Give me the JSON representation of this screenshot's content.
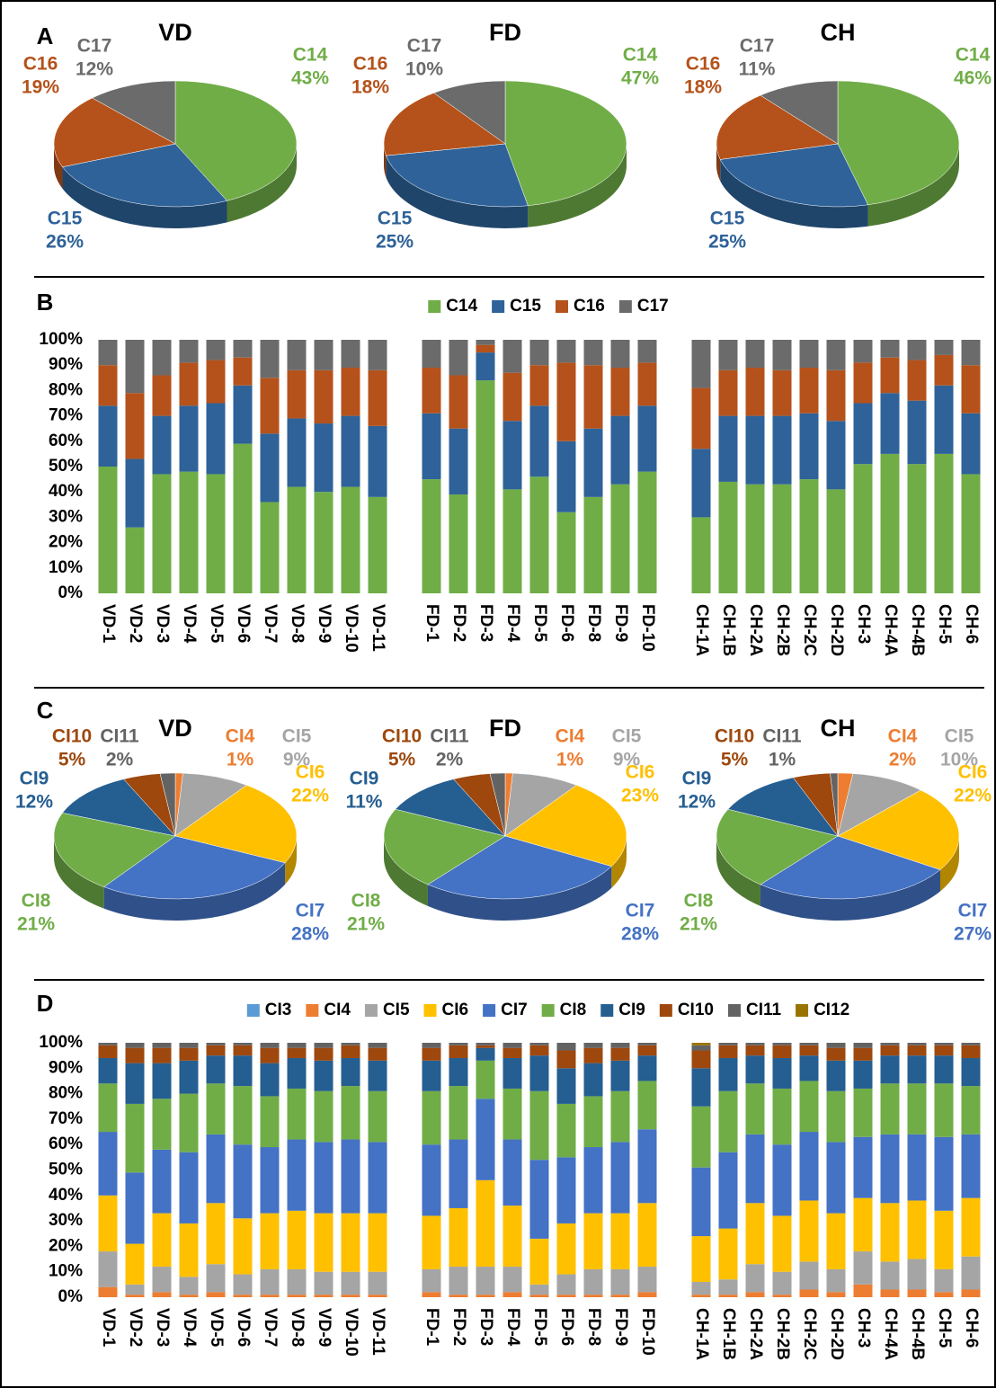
{
  "chart_data": [
    {
      "type": "pie",
      "panel": "A",
      "title": "VD",
      "categories": [
        "C14",
        "C15",
        "C16",
        "C17"
      ],
      "values": [
        43,
        26,
        19,
        12
      ],
      "value_labels": [
        "43%",
        "26%",
        "19%",
        "12%"
      ],
      "colors": [
        "#70ad47",
        "#2e6299",
        "#b5521b",
        "#6b6b6b"
      ]
    },
    {
      "type": "pie",
      "title": "FD",
      "categories": [
        "C14",
        "C15",
        "C16",
        "C17"
      ],
      "values": [
        47,
        25,
        18,
        10
      ],
      "value_labels": [
        "47%",
        "25%",
        "18%",
        "10%"
      ],
      "colors": [
        "#70ad47",
        "#2e6299",
        "#b5521b",
        "#6b6b6b"
      ]
    },
    {
      "type": "pie",
      "title": "CH",
      "categories": [
        "C14",
        "C15",
        "C16",
        "C17"
      ],
      "values": [
        46,
        25,
        18,
        11
      ],
      "value_labels": [
        "46%",
        "25%",
        "18%",
        "11%"
      ],
      "colors": [
        "#70ad47",
        "#2e6299",
        "#b5521b",
        "#6b6b6b"
      ]
    },
    {
      "type": "bar",
      "stacked": true,
      "panel": "B",
      "categories": [
        "VD-1",
        "VD-2",
        "VD-3",
        "VD-4",
        "VD-5",
        "VD-6",
        "VD-7",
        "VD-8",
        "VD-9",
        "VD-10",
        "VD-11",
        null,
        "FD-1",
        "FD-2",
        "FD-3",
        "FD-4",
        "FD-5",
        "FD-6",
        "FD-8",
        "FD-9",
        "FD-10",
        null,
        "CH-1A",
        "CH-1B",
        "CH-2A",
        "CH-2B",
        "CH-2C",
        "CH-2D",
        "CH-3",
        "CH-4A",
        "CH-4B",
        "CH-5",
        "CH-6"
      ],
      "series": [
        {
          "name": "C14",
          "color": "#70ad47",
          "values": [
            50,
            26,
            47,
            48,
            47,
            59,
            36,
            42,
            40,
            42,
            38,
            null,
            45,
            39,
            84,
            41,
            46,
            32,
            38,
            43,
            48,
            null,
            30,
            44,
            43,
            43,
            45,
            41,
            51,
            55,
            51,
            55,
            47
          ]
        },
        {
          "name": "C15",
          "color": "#2e6299",
          "values": [
            24,
            27,
            23,
            26,
            28,
            23,
            27,
            27,
            27,
            28,
            28,
            null,
            26,
            26,
            11,
            27,
            28,
            28,
            27,
            27,
            26,
            null,
            27,
            26,
            27,
            27,
            26,
            27,
            24,
            24,
            25,
            27,
            24
          ]
        },
        {
          "name": "C16",
          "color": "#b5521b",
          "values": [
            16,
            26,
            16,
            17,
            17,
            11,
            22,
            19,
            21,
            19,
            22,
            null,
            18,
            21,
            3,
            19,
            16,
            31,
            25,
            19,
            17,
            null,
            24,
            18,
            19,
            18,
            18,
            20,
            16,
            14,
            16,
            12,
            19
          ]
        },
        {
          "name": "C17",
          "color": "#6b6b6b",
          "values": [
            10,
            21,
            14,
            9,
            8,
            7,
            15,
            12,
            12,
            11,
            12,
            null,
            11,
            14,
            2,
            13,
            10,
            9,
            10,
            11,
            9,
            null,
            19,
            12,
            11,
            12,
            11,
            12,
            9,
            7,
            8,
            6,
            10
          ]
        }
      ],
      "ylim": [
        0,
        100
      ],
      "yticks": [
        {
          "value": 0,
          "label": "0%"
        },
        {
          "value": 10,
          "label": "10%"
        },
        {
          "value": 20,
          "label": "20%"
        },
        {
          "value": 30,
          "label": "30%"
        },
        {
          "value": 40,
          "label": "40%"
        },
        {
          "value": 50,
          "label": "50%"
        },
        {
          "value": 60,
          "label": "60%"
        },
        {
          "value": 70,
          "label": "70%"
        },
        {
          "value": 80,
          "label": "80%"
        },
        {
          "value": 90,
          "label": "90%"
        },
        {
          "value": 100,
          "label": "100%"
        }
      ],
      "legend": "top"
    },
    {
      "type": "pie",
      "panel": "C",
      "title": "VD",
      "categories": [
        "CI4",
        "CI5",
        "CI6",
        "CI7",
        "CI8",
        "CI9",
        "CI10",
        "CI11"
      ],
      "values": [
        1,
        9,
        22,
        28,
        21,
        12,
        5,
        2
      ],
      "value_labels": [
        "1%",
        "9%",
        "22%",
        "28%",
        "21%",
        "12%",
        "5%",
        "2%"
      ],
      "colors": [
        "#ed7d31",
        "#a5a5a5",
        "#ffc000",
        "#4472c4",
        "#70ad47",
        "#255e91",
        "#9e480e",
        "#636363"
      ]
    },
    {
      "type": "pie",
      "title": "FD",
      "categories": [
        "CI4",
        "CI5",
        "CI6",
        "CI7",
        "CI8",
        "CI9",
        "CI10",
        "CI11"
      ],
      "values": [
        1,
        9,
        23,
        28,
        21,
        11,
        5,
        2
      ],
      "value_labels": [
        "1%",
        "9%",
        "23%",
        "28%",
        "21%",
        "11%",
        "5%",
        "2%"
      ],
      "colors": [
        "#ed7d31",
        "#a5a5a5",
        "#ffc000",
        "#4472c4",
        "#70ad47",
        "#255e91",
        "#9e480e",
        "#636363"
      ]
    },
    {
      "type": "pie",
      "title": "CH",
      "categories": [
        "CI4",
        "CI5",
        "CI6",
        "CI7",
        "CI8",
        "CI9",
        "CI10",
        "CI11"
      ],
      "values": [
        2,
        10,
        22,
        27,
        21,
        12,
        5,
        1
      ],
      "value_labels": [
        "2%",
        "10%",
        "22%",
        "27%",
        "21%",
        "12%",
        "5%",
        "1%"
      ],
      "colors": [
        "#ed7d31",
        "#a5a5a5",
        "#ffc000",
        "#4472c4",
        "#70ad47",
        "#255e91",
        "#9e480e",
        "#636363"
      ]
    },
    {
      "type": "bar",
      "stacked": true,
      "panel": "D",
      "categories": [
        "VD-1",
        "VD-2",
        "VD-3",
        "VD-4",
        "VD-5",
        "VD-6",
        "VD-7",
        "VD-8",
        "VD-9",
        "VD-10",
        "VD-11",
        null,
        "FD-1",
        "FD-2",
        "FD-3",
        "FD-4",
        "FD-5",
        "FD-6",
        "FD-8",
        "FD-9",
        "FD-10",
        null,
        "CH-1A",
        "CH-1B",
        "CH-2A",
        "CH-2B",
        "CH-2C",
        "CH-2D",
        "CH-3",
        "CH-4A",
        "CH-4B",
        "CH-5",
        "CH-6"
      ],
      "series": [
        {
          "name": "CI3",
          "color": "#5b9bd5",
          "values": [
            0,
            0,
            0,
            0,
            0,
            0,
            0,
            0,
            0,
            0,
            0,
            null,
            0,
            0,
            0,
            0,
            0,
            0,
            0,
            0,
            0,
            null,
            0,
            0,
            0,
            0,
            0,
            0,
            0,
            0,
            0,
            0,
            0
          ]
        },
        {
          "name": "CI4",
          "color": "#ed7d31",
          "values": [
            4,
            1,
            2,
            1,
            2,
            1,
            1,
            1,
            1,
            1,
            1,
            null,
            2,
            1,
            1,
            2,
            1,
            1,
            1,
            1,
            2,
            null,
            1,
            1,
            2,
            1,
            3,
            2,
            5,
            3,
            3,
            2,
            3
          ]
        },
        {
          "name": "CI5",
          "color": "#a5a5a5",
          "values": [
            14,
            4,
            10,
            7,
            11,
            8,
            10,
            10,
            9,
            9,
            9,
            null,
            9,
            11,
            11,
            10,
            4,
            8,
            10,
            10,
            10,
            null,
            5,
            6,
            11,
            9,
            11,
            9,
            13,
            11,
            12,
            9,
            13
          ]
        },
        {
          "name": "CI6",
          "color": "#ffc000",
          "values": [
            22,
            16,
            21,
            21,
            24,
            22,
            22,
            23,
            23,
            23,
            23,
            null,
            21,
            23,
            34,
            24,
            18,
            20,
            22,
            22,
            25,
            null,
            18,
            20,
            24,
            22,
            24,
            22,
            21,
            23,
            23,
            23,
            23
          ]
        },
        {
          "name": "CI7",
          "color": "#4472c4",
          "values": [
            25,
            28,
            25,
            28,
            27,
            29,
            26,
            28,
            28,
            29,
            28,
            null,
            28,
            27,
            32,
            26,
            31,
            26,
            26,
            28,
            29,
            null,
            27,
            30,
            27,
            28,
            27,
            28,
            24,
            27,
            26,
            29,
            25
          ]
        },
        {
          "name": "CI8",
          "color": "#70ad47",
          "values": [
            19,
            27,
            20,
            23,
            20,
            23,
            20,
            20,
            20,
            21,
            20,
            null,
            21,
            21,
            15,
            20,
            27,
            21,
            20,
            20,
            19,
            null,
            24,
            24,
            20,
            22,
            20,
            20,
            19,
            20,
            20,
            21,
            19
          ]
        },
        {
          "name": "CI9",
          "color": "#255e91",
          "values": [
            10,
            16,
            14,
            13,
            11,
            12,
            13,
            12,
            12,
            11,
            12,
            null,
            12,
            11,
            5,
            12,
            14,
            14,
            13,
            12,
            10,
            null,
            15,
            13,
            11,
            12,
            10,
            12,
            11,
            11,
            11,
            11,
            11
          ]
        },
        {
          "name": "CI10",
          "color": "#9e480e",
          "values": [
            5,
            6,
            6,
            5,
            4,
            4,
            6,
            4,
            5,
            5,
            5,
            null,
            5,
            5,
            1,
            4,
            4,
            7,
            6,
            5,
            4,
            null,
            7,
            5,
            4,
            5,
            4,
            5,
            5,
            4,
            4,
            4,
            5
          ]
        },
        {
          "name": "CI11",
          "color": "#636363",
          "values": [
            1,
            2,
            2,
            2,
            1,
            1,
            2,
            2,
            2,
            1,
            2,
            null,
            2,
            1,
            1,
            2,
            1,
            3,
            2,
            2,
            1,
            null,
            2,
            1,
            1,
            1,
            1,
            2,
            2,
            1,
            1,
            1,
            1
          ]
        },
        {
          "name": "CI12",
          "color": "#997300",
          "values": [
            0,
            0,
            0,
            0,
            0,
            0,
            0,
            0,
            0,
            0,
            0,
            null,
            0,
            0,
            0,
            0,
            0,
            0,
            0,
            0,
            0,
            null,
            1,
            0,
            0,
            0,
            0,
            0,
            0,
            0,
            0,
            0,
            0
          ]
        }
      ],
      "ylim": [
        0,
        100
      ],
      "yticks": [
        {
          "value": 0,
          "label": "0%"
        },
        {
          "value": 10,
          "label": "10%"
        },
        {
          "value": 20,
          "label": "20%"
        },
        {
          "value": 30,
          "label": "30%"
        },
        {
          "value": 40,
          "label": "40%"
        },
        {
          "value": 50,
          "label": "50%"
        },
        {
          "value": 60,
          "label": "60%"
        },
        {
          "value": 70,
          "label": "70%"
        },
        {
          "value": 80,
          "label": "80%"
        },
        {
          "value": 90,
          "label": "90%"
        },
        {
          "value": 100,
          "label": "100%"
        }
      ],
      "legend": "top"
    }
  ]
}
